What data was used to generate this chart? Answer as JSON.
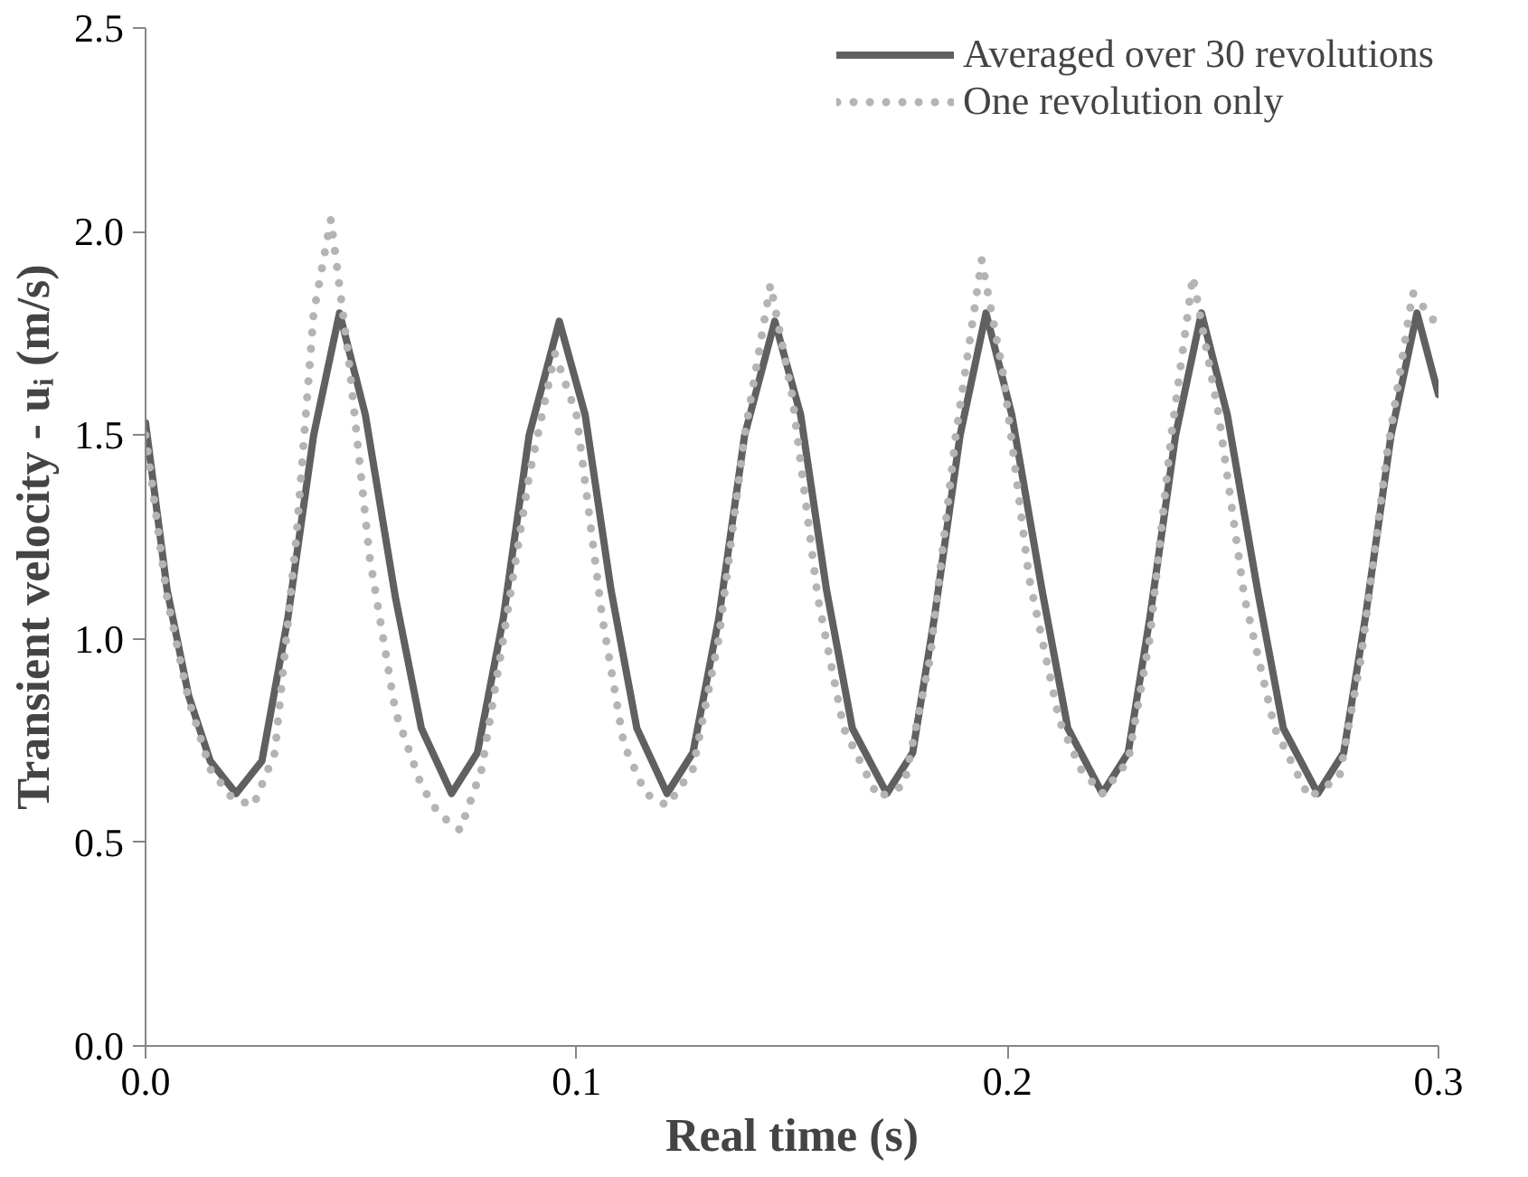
{
  "chart_data": {
    "type": "line",
    "xlabel": "Real time (s)",
    "ylabel": "Transient velocity - uᵢ (m/s)",
    "xlim": [
      0,
      0.3
    ],
    "ylim": [
      0,
      2.5
    ],
    "xticks": [
      {
        "value": 0,
        "label": "0.0"
      },
      0.1,
      0.2,
      0.3
    ],
    "yticks": [
      {
        "value": 0,
        "label": "0.0"
      },
      0.5,
      {
        "value": 1,
        "label": "1.0"
      },
      {
        "value": 1.5,
        "label": "1.5"
      },
      {
        "value": 2,
        "label": "2.0"
      },
      2.5
    ],
    "grid": false,
    "legend": "top right",
    "series": [
      {
        "name": "Averaged over 30 revolutions",
        "color": "#606060",
        "line_style": "solid",
        "x": [
          0,
          0.005,
          0.01,
          0.015,
          0.021,
          0.027,
          0.033,
          0.039,
          0.045,
          0.051,
          0.058,
          0.064,
          0.071,
          0.077,
          0.083,
          0.089,
          0.096,
          0.102,
          0.108,
          0.114,
          0.121,
          0.127,
          0.133,
          0.139,
          0.146,
          0.152,
          0.158,
          0.164,
          0.172,
          0.178,
          0.183,
          0.189,
          0.195,
          0.201,
          0.208,
          0.214,
          0.222,
          0.228,
          0.233,
          0.239,
          0.245,
          0.251,
          0.258,
          0.264,
          0.272,
          0.278,
          0.283,
          0.289,
          0.295,
          0.3
        ],
        "values": [
          1.53,
          1.12,
          0.86,
          0.7,
          0.62,
          0.7,
          1.05,
          1.5,
          1.8,
          1.55,
          1.1,
          0.78,
          0.62,
          0.72,
          1.05,
          1.5,
          1.78,
          1.55,
          1.12,
          0.78,
          0.62,
          0.72,
          1.05,
          1.5,
          1.78,
          1.55,
          1.12,
          0.78,
          0.62,
          0.72,
          1.05,
          1.5,
          1.8,
          1.55,
          1.12,
          0.78,
          0.62,
          0.72,
          1.05,
          1.5,
          1.8,
          1.55,
          1.12,
          0.78,
          0.62,
          0.72,
          1.05,
          1.5,
          1.8,
          1.6
        ]
      },
      {
        "name": "One revolution only",
        "color": "#b4b4b4",
        "line_style": "dotted",
        "x": [
          0,
          0.005,
          0.01,
          0.015,
          0.02,
          0.025,
          0.03,
          0.035,
          0.039,
          0.043,
          0.047,
          0.052,
          0.058,
          0.064,
          0.068,
          0.073,
          0.078,
          0.083,
          0.089,
          0.095,
          0.1,
          0.106,
          0.111,
          0.116,
          0.121,
          0.127,
          0.133,
          0.139,
          0.145,
          0.15,
          0.156,
          0.162,
          0.17,
          0.176,
          0.182,
          0.188,
          0.194,
          0.199,
          0.205,
          0.212,
          0.217,
          0.222,
          0.228,
          0.233,
          0.238,
          0.243,
          0.249,
          0.255,
          0.262,
          0.27,
          0.277,
          0.282,
          0.288,
          0.294,
          0.299
        ],
        "values": [
          1.5,
          1.1,
          0.85,
          0.68,
          0.61,
          0.59,
          0.72,
          1.25,
          1.8,
          2.03,
          1.7,
          1.2,
          0.82,
          0.64,
          0.57,
          0.53,
          0.68,
          1.0,
          1.4,
          1.7,
          1.55,
          1.05,
          0.74,
          0.62,
          0.59,
          0.68,
          1.0,
          1.5,
          1.87,
          1.6,
          1.1,
          0.78,
          0.61,
          0.64,
          0.95,
          1.5,
          1.93,
          1.65,
          1.15,
          0.8,
          0.68,
          0.62,
          0.7,
          1.0,
          1.5,
          1.89,
          1.55,
          1.1,
          0.78,
          0.61,
          0.66,
          0.95,
          1.45,
          1.85,
          1.78
        ]
      }
    ]
  }
}
